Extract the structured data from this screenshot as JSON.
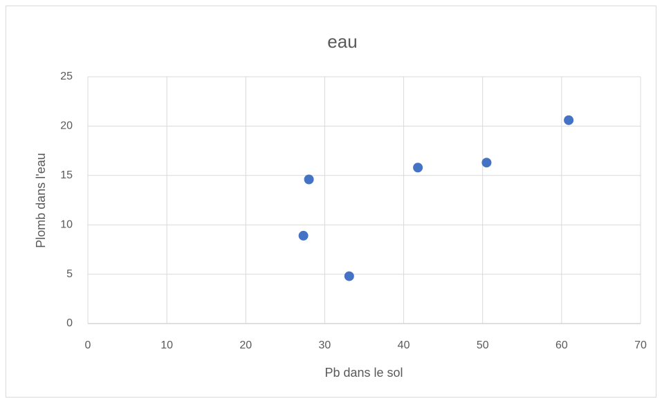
{
  "chart_data": {
    "type": "scatter",
    "title": "eau",
    "x_label": "Pb dans le sol",
    "y_label": "Plomb dans l'eau",
    "series": [
      {
        "name": "eau",
        "color": "#4472c4",
        "x": [
          27.3,
          28.0,
          33.1,
          41.8,
          50.5,
          60.9
        ],
        "values": [
          8.9,
          14.6,
          4.8,
          15.8,
          16.3,
          20.6
        ]
      }
    ],
    "xlim": [
      0,
      70
    ],
    "xticks": [
      0,
      10,
      20,
      30,
      40,
      50,
      60,
      70
    ],
    "ylim": [
      0,
      25
    ],
    "yticks": [
      0,
      5,
      10,
      15,
      20,
      25
    ],
    "grid": true
  }
}
